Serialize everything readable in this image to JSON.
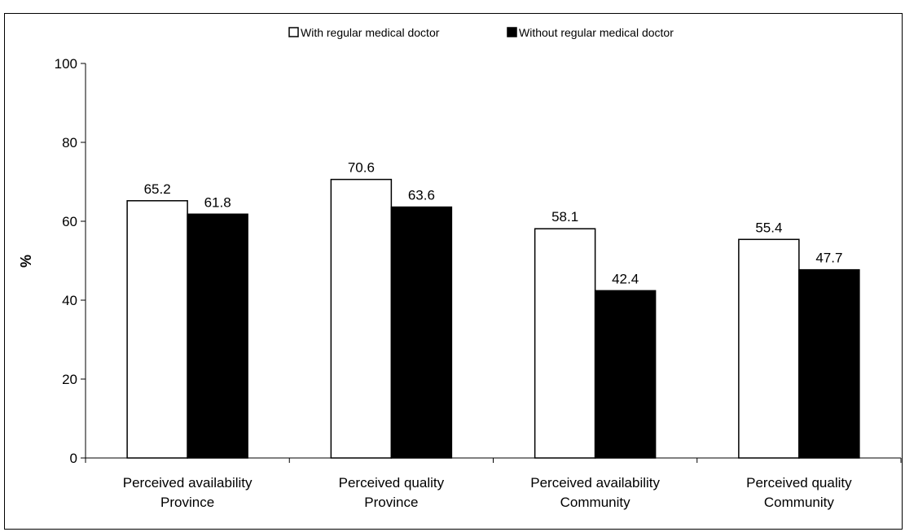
{
  "chart_data": {
    "type": "bar",
    "categories": [
      [
        "Perceived availability",
        "Province"
      ],
      [
        "Perceived quality",
        "Province"
      ],
      [
        "Perceived availability",
        "Community"
      ],
      [
        "Perceived quality",
        "Community"
      ]
    ],
    "series": [
      {
        "name": "With regular medical doctor",
        "values": [
          65.2,
          70.6,
          58.1,
          55.4
        ],
        "color": "#ffffff"
      },
      {
        "name": "Without regular medical doctor",
        "values": [
          61.8,
          63.6,
          42.4,
          47.7
        ],
        "color": "#000000"
      }
    ],
    "value_labels": [
      [
        "65.2",
        "70.6",
        "58.1",
        "55.4"
      ],
      [
        "61.8",
        "63.6",
        "42.4",
        "47.7"
      ]
    ],
    "ylabel": "%",
    "ylim": [
      0,
      100
    ],
    "yticks": [
      0,
      20,
      40,
      60,
      80,
      100
    ],
    "ytick_labels": [
      "0",
      "20",
      "40",
      "60",
      "80",
      "100"
    ],
    "grid": false,
    "legend_position": "top-center"
  }
}
